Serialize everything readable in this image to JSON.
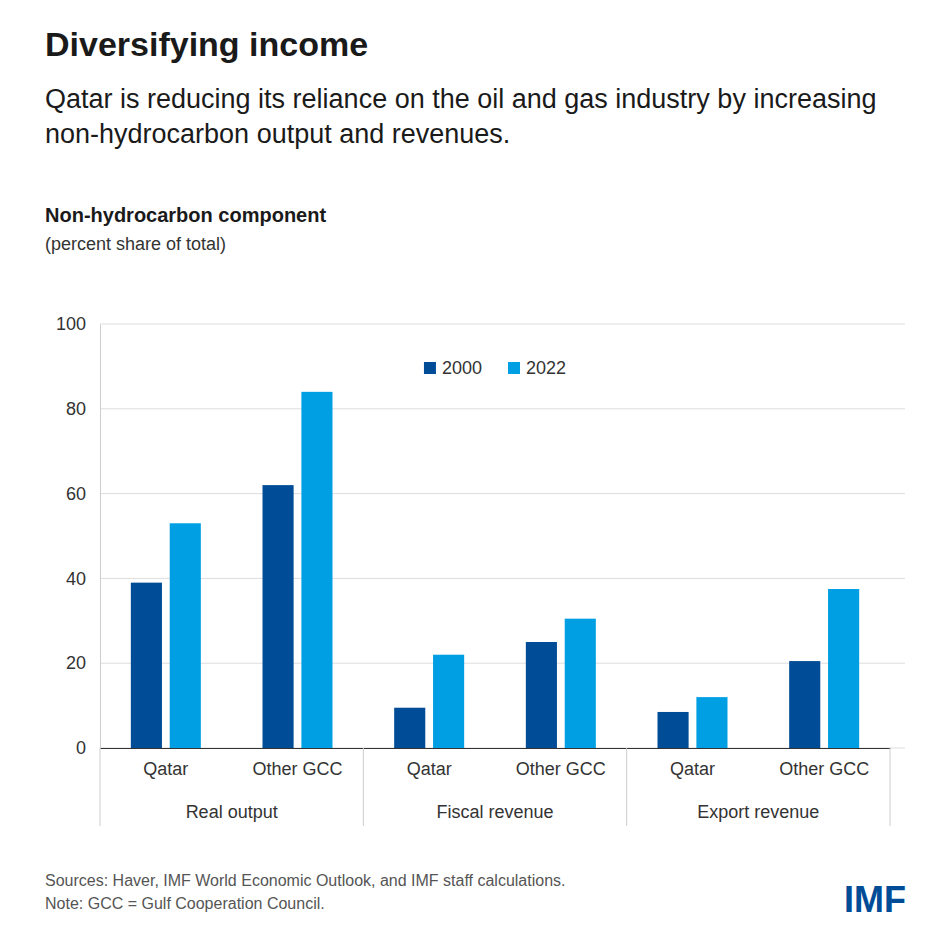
{
  "chart_data": {
    "type": "bar",
    "title": "Diversifying income",
    "subtitle": "Qatar is reducing its reliance on the oil and gas industry by increasing non-hydrocarbon output and revenues.",
    "chart_title": "Non-hydrocarbon component",
    "y_label": "(percent share of total)",
    "categories": [
      "Qatar",
      "Other GCC",
      "Qatar",
      "Other GCC",
      "Qatar",
      "Other GCC"
    ],
    "category_groups": [
      "Real output",
      "Fiscal revenue",
      "Export revenue"
    ],
    "series": [
      {
        "name": "2000",
        "color": "#004c97",
        "values": [
          39,
          62,
          9.5,
          25,
          8.5,
          20.5
        ]
      },
      {
        "name": "2022",
        "color": "#009fe3",
        "values": [
          53,
          84,
          22,
          30.5,
          12,
          37.5
        ]
      }
    ],
    "ylim": [
      0,
      100
    ],
    "yticks": [
      0,
      20,
      40,
      60,
      80,
      100
    ],
    "grid": true,
    "legend": "top",
    "source": "Sources: Haver, IMF World Economic Outlook, and IMF staff calculations.",
    "note": "Note: GCC = Gulf Cooperation Council.",
    "logo": "IMF"
  }
}
